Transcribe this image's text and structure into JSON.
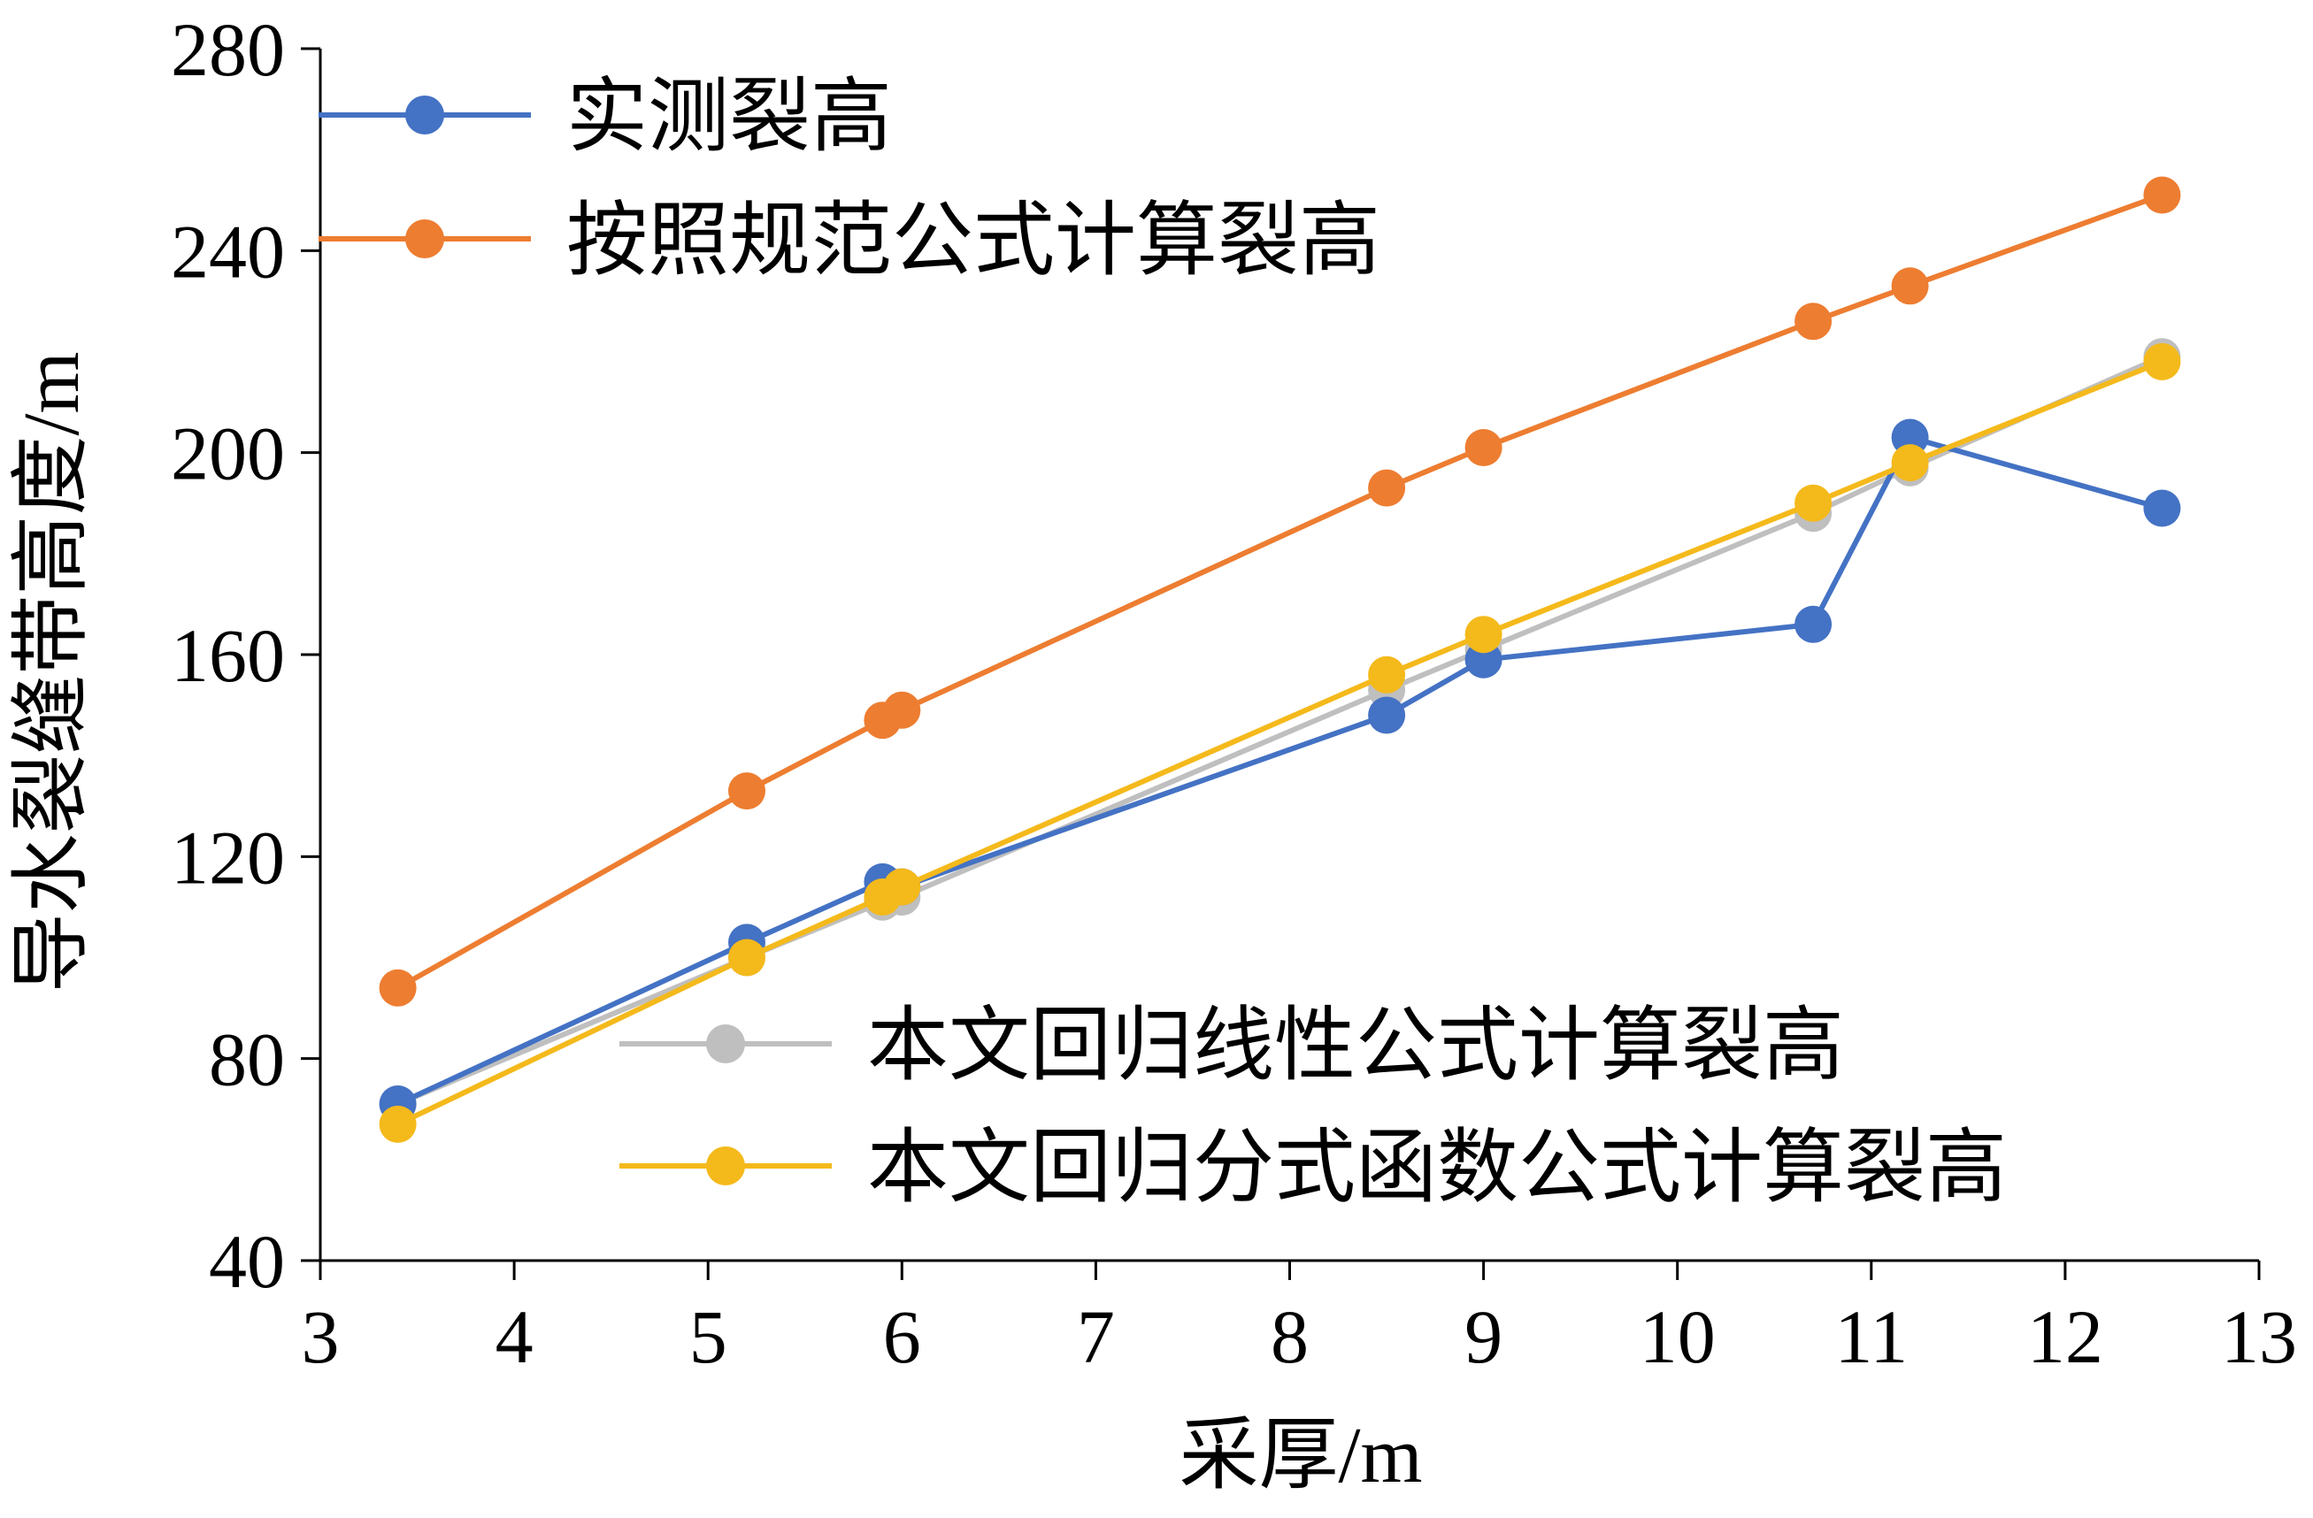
{
  "chart_data": {
    "type": "line",
    "xlabel": "采厚/m",
    "ylabel": "导水裂缝带高度/m",
    "xlim": [
      3,
      13
    ],
    "ylim": [
      40,
      280
    ],
    "xticks": [
      "3",
      "4",
      "5",
      "6",
      "7",
      "8",
      "9",
      "10",
      "11",
      "12",
      "13"
    ],
    "yticks": [
      "40",
      "80",
      "120",
      "160",
      "200",
      "240",
      "280"
    ],
    "grid": false,
    "x": [
      3.4,
      5.2,
      5.9,
      6.0,
      8.5,
      9.0,
      10.7,
      11.2,
      12.5
    ],
    "series": [
      {
        "name": "本文回归线性公式计算裂高",
        "color": "#BFBFBF",
        "values": [
          71,
          100,
          111,
          112,
          153,
          161,
          188,
          197,
          219
        ]
      },
      {
        "name": "实测裂高",
        "color": "#4472C4",
        "values": [
          71,
          103,
          115,
          114,
          148,
          159,
          166,
          203,
          189
        ]
      },
      {
        "name": "按照规范公式计算裂高",
        "color": "#ED7D31",
        "values": [
          94,
          133,
          147,
          149,
          193,
          201,
          226,
          233,
          251
        ]
      },
      {
        "name": "本文回归分式函数公式计算裂高",
        "color": "#F4B91B",
        "values": [
          67,
          100,
          112,
          114,
          156,
          164,
          190,
          198,
          218
        ]
      }
    ],
    "legend": [
      {
        "series": 1,
        "placement": "top-left"
      },
      {
        "series": 2,
        "placement": "top-left"
      },
      {
        "series": 0,
        "placement": "lower-right"
      },
      {
        "series": 3,
        "placement": "lower-right"
      }
    ]
  }
}
